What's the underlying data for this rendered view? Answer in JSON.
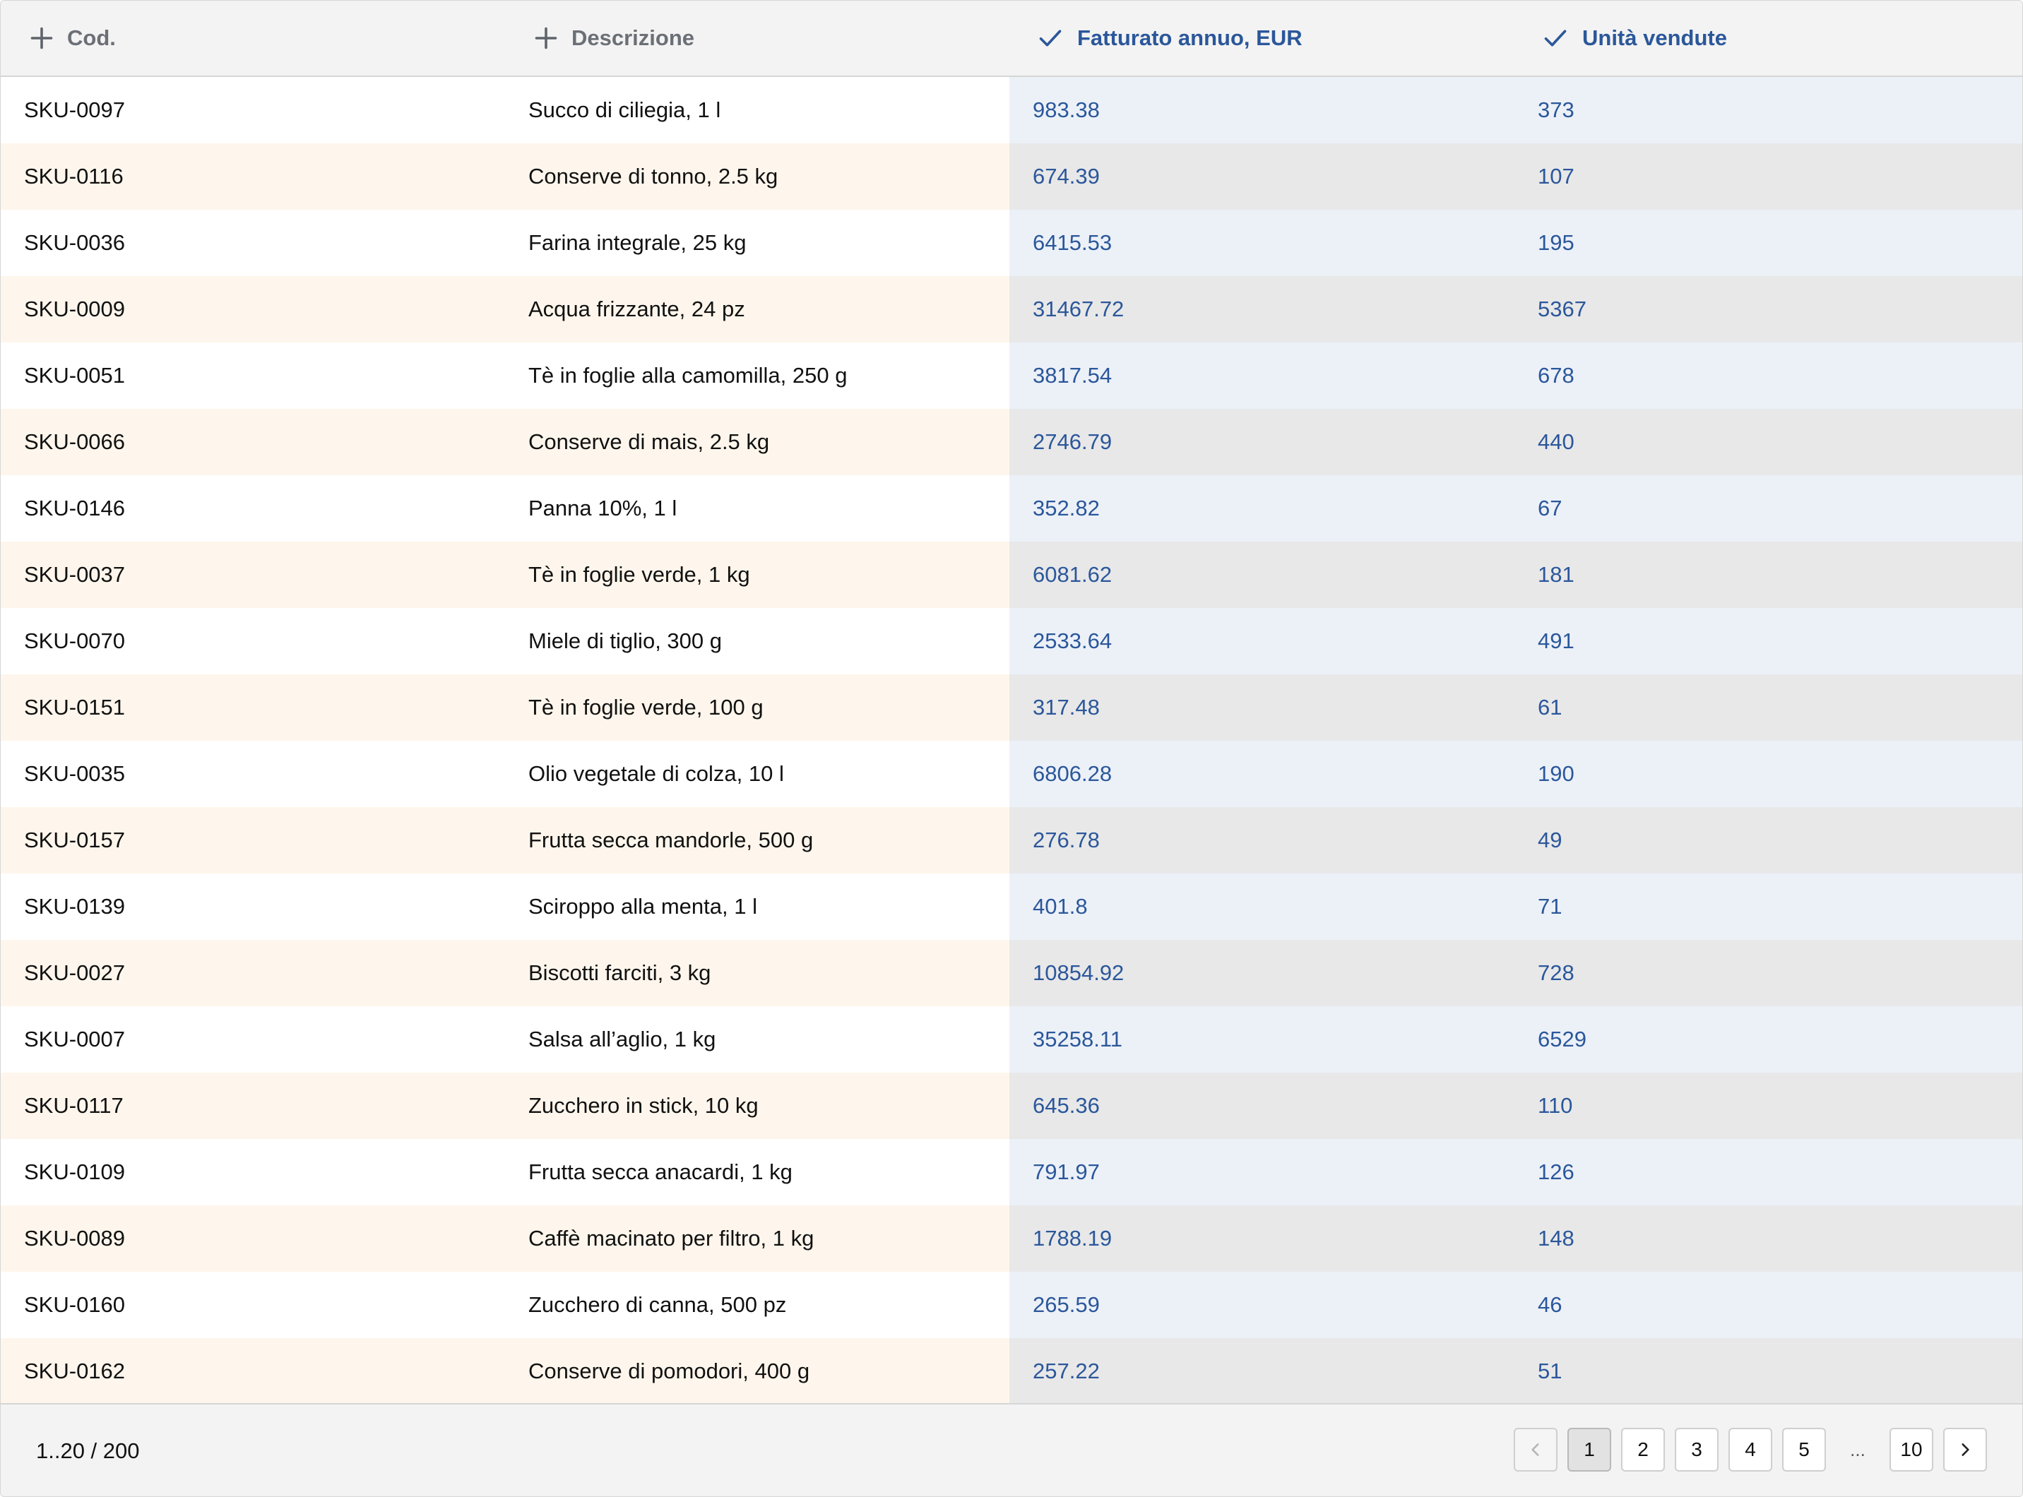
{
  "header": {
    "columns": [
      {
        "label": "Cod.",
        "icon": "plus-icon"
      },
      {
        "label": "Descrizione",
        "icon": "plus-icon"
      },
      {
        "label": "Fatturato annuo, EUR",
        "icon": "check-icon"
      },
      {
        "label": "Unità vendute",
        "icon": "check-icon"
      }
    ]
  },
  "rows": [
    [
      "SKU-0097",
      "Succo di ciliegia, 1 l",
      "983.38",
      "373"
    ],
    [
      "SKU-0116",
      "Conserve di tonno, 2.5 kg",
      "674.39",
      "107"
    ],
    [
      "SKU-0036",
      "Farina integrale, 25 kg",
      "6415.53",
      "195"
    ],
    [
      "SKU-0009",
      "Acqua frizzante, 24 pz",
      "31467.72",
      "5367"
    ],
    [
      "SKU-0051",
      "Tè in foglie alla camomilla, 250 g",
      "3817.54",
      "678"
    ],
    [
      "SKU-0066",
      "Conserve di mais, 2.5 kg",
      "2746.79",
      "440"
    ],
    [
      "SKU-0146",
      "Panna 10%, 1 l",
      "352.82",
      "67"
    ],
    [
      "SKU-0037",
      "Tè in foglie verde, 1 kg",
      "6081.62",
      "181"
    ],
    [
      "SKU-0070",
      "Miele di tiglio, 300 g",
      "2533.64",
      "491"
    ],
    [
      "SKU-0151",
      "Tè in foglie verde, 100 g",
      "317.48",
      "61"
    ],
    [
      "SKU-0035",
      "Olio vegetale di colza, 10 l",
      "6806.28",
      "190"
    ],
    [
      "SKU-0157",
      "Frutta secca mandorle, 500 g",
      "276.78",
      "49"
    ],
    [
      "SKU-0139",
      "Sciroppo alla menta, 1 l",
      "401.8",
      "71"
    ],
    [
      "SKU-0027",
      "Biscotti farciti, 3 kg",
      "10854.92",
      "728"
    ],
    [
      "SKU-0007",
      "Salsa all’aglio, 1 kg",
      "35258.11",
      "6529"
    ],
    [
      "SKU-0117",
      "Zucchero in stick, 10 kg",
      "645.36",
      "110"
    ],
    [
      "SKU-0109",
      "Frutta secca anacardi, 1 kg",
      "791.97",
      "126"
    ],
    [
      "SKU-0089",
      "Caffè macinato per filtro, 1 kg",
      "1788.19",
      "148"
    ],
    [
      "SKU-0160",
      "Zucchero di canna, 500 pz",
      "265.59",
      "46"
    ],
    [
      "SKU-0162",
      "Conserve di pomodori, 400 g",
      "257.22",
      "51"
    ]
  ],
  "footer": {
    "range_label": "1..20 / 200",
    "pages": [
      "1",
      "2",
      "3",
      "4",
      "5"
    ],
    "ellipsis": "...",
    "last_page": "10",
    "current_page": "1",
    "prev_icon": "chevron-left-icon",
    "next_icon": "chevron-right-icon"
  },
  "colors": {
    "accent": "#2b579a",
    "header_bg": "#f3f3f3",
    "row_alt_bg": "#fef6ec",
    "selected_col_bg": "#ecf1f8",
    "selected_col_alt_bg": "#e8e8e9"
  }
}
